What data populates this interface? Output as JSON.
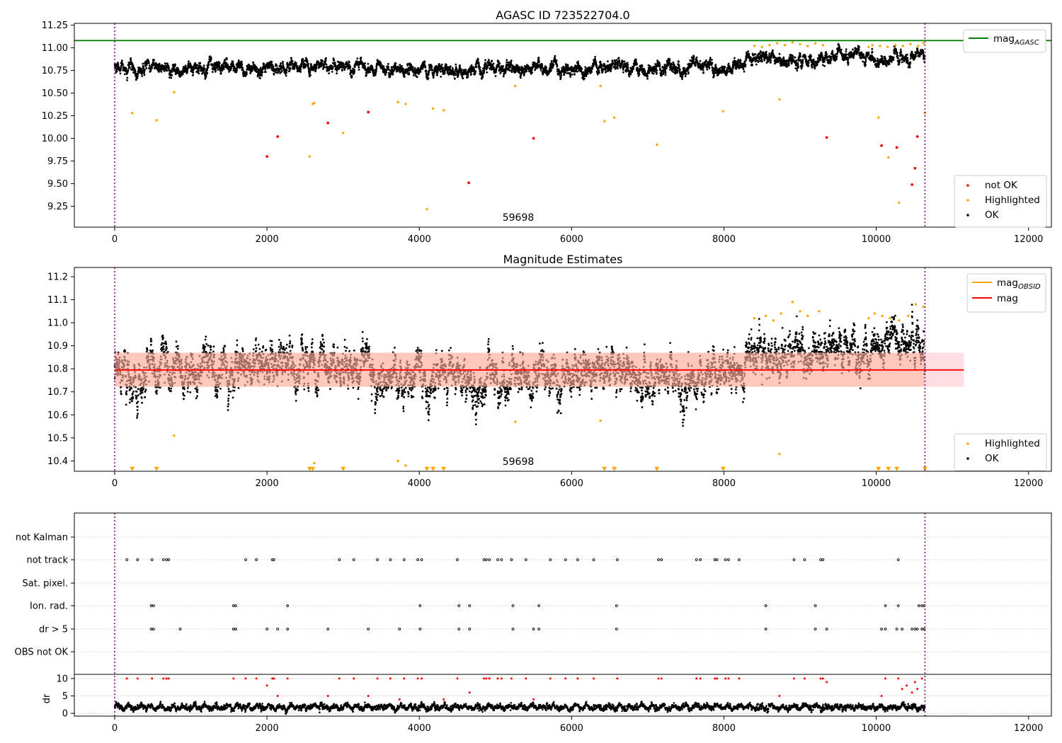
{
  "chart_data": [
    {
      "type": "scatter",
      "title": "AGASC ID 723522704.0",
      "xlim": [
        -530,
        12300
      ],
      "ylim": [
        9.02,
        11.27
      ],
      "xticks": [
        0,
        2000,
        4000,
        6000,
        8000,
        10000,
        12000
      ],
      "yticks": [
        9.25,
        9.5,
        9.75,
        10.0,
        10.25,
        10.5,
        10.75,
        11.0,
        11.25
      ],
      "ytick_labels": [
        "9.25",
        "9.50",
        "9.75",
        "10.00",
        "10.25",
        "10.50",
        "10.75",
        "11.00",
        "11.25"
      ],
      "annotation": "59698",
      "vlines": [
        0,
        10640
      ],
      "hline": {
        "name": "mag_AGASC",
        "y": 11.08,
        "color": "#008000",
        "x_range": [
          -530,
          12300
        ]
      },
      "legend_lines": [
        {
          "label": "mag",
          "subscript": "AGASC",
          "color": "#008000"
        }
      ],
      "legend_points": [
        {
          "label": "not OK",
          "color": "#ff0000"
        },
        {
          "label": "Highlighted",
          "color": "#ffa500"
        },
        {
          "label": "OK",
          "color": "#000000"
        }
      ],
      "series": [
        {
          "name": "OK",
          "color": "#000000",
          "n": 5200,
          "x_range": [
            0,
            10640
          ],
          "baseline": [
            [
              0,
              10.78
            ],
            [
              3300,
              10.8
            ],
            [
              3500,
              10.76
            ],
            [
              8000,
              10.77
            ],
            [
              8400,
              10.86
            ],
            [
              10640,
              10.9
            ]
          ],
          "spread": 0.045
        },
        {
          "name": "not OK",
          "color": "#ff0000",
          "x": [
            2000,
            2140,
            2800,
            3330,
            4650,
            5500,
            9350,
            10070,
            10270,
            10470,
            10510,
            10540
          ],
          "y": [
            9.8,
            10.02,
            10.17,
            10.29,
            9.51,
            10.0,
            10.01,
            9.92,
            9.9,
            9.49,
            9.67,
            10.02
          ]
        },
        {
          "name": "Highlighted",
          "color": "#ffa500",
          "x": [
            230,
            550,
            780,
            2560,
            2600,
            2620,
            3000,
            3720,
            3820,
            4100,
            4180,
            4320,
            5260,
            6380,
            6430,
            6560,
            7120,
            7990,
            8730,
            10030,
            10160,
            10300,
            10640,
            8400,
            8500,
            8600,
            8700,
            8800,
            8900,
            9000,
            9100,
            9200,
            9300,
            9900,
            9950,
            10050,
            10150,
            10250,
            10350,
            10450,
            10550,
            10620
          ],
          "y": [
            10.28,
            10.2,
            10.51,
            9.8,
            10.38,
            10.39,
            10.06,
            10.4,
            10.38,
            9.22,
            10.33,
            10.31,
            10.58,
            10.58,
            10.19,
            10.23,
            9.93,
            10.3,
            10.43,
            10.23,
            9.79,
            9.29,
            10.28,
            11.02,
            11.01,
            11.03,
            11.05,
            11.03,
            11.06,
            11.04,
            11.02,
            11.05,
            11.03,
            11.01,
            11.03,
            11.02,
            11.01,
            11.03,
            11.02,
            11.04,
            11.02,
            11.05
          ]
        }
      ]
    },
    {
      "type": "scatter",
      "title": "Magnitude Estimates",
      "xlim": [
        -530,
        12300
      ],
      "ylim": [
        10.355,
        11.24
      ],
      "xticks": [
        0,
        2000,
        4000,
        6000,
        8000,
        10000,
        12000
      ],
      "yticks": [
        10.4,
        10.5,
        10.6,
        10.7,
        10.8,
        10.9,
        11.0,
        11.1,
        11.2
      ],
      "ytick_labels": [
        "10.4",
        "10.5",
        "10.6",
        "10.7",
        "10.8",
        "10.9",
        "11.0",
        "11.1",
        "11.2"
      ],
      "annotation": "59698",
      "vlines": [
        0,
        10640
      ],
      "mag_line": {
        "name": "mag",
        "y": 10.795,
        "color": "#ff0000",
        "x_range": [
          0,
          11150
        ]
      },
      "mag_band": {
        "y_range": [
          10.722,
          10.87
        ],
        "x_range": [
          0,
          11150
        ],
        "color": "#ffb6c1"
      },
      "mag_obsid_band": {
        "y_range": [
          10.722,
          10.87
        ],
        "x_range": [
          0,
          10640
        ],
        "color": "#ffa07a"
      },
      "legend_lines": [
        {
          "label": "mag",
          "subscript": "OBSID",
          "color": "#ffa500"
        },
        {
          "label": "mag",
          "subscript": "",
          "color": "#ff0000"
        }
      ],
      "legend_points": [
        {
          "label": "Highlighted",
          "color": "#ffa500"
        },
        {
          "label": "OK",
          "color": "#000000"
        }
      ],
      "series": [
        {
          "name": "OK",
          "color": "#000000",
          "n": 5600,
          "x_range": [
            0,
            10640
          ],
          "baseline": [
            [
              0,
              10.78
            ],
            [
              3300,
              10.82
            ],
            [
              3500,
              10.76
            ],
            [
              8000,
              10.77
            ],
            [
              8400,
              10.87
            ],
            [
              10640,
              10.89
            ]
          ],
          "spread": 0.06
        },
        {
          "name": "Highlighted",
          "color": "#ffa500",
          "x": [
            780,
            2620,
            3720,
            3820,
            5260,
            6380,
            8730,
            8400,
            8550,
            8650,
            8750,
            8900,
            9000,
            9100,
            9250,
            9900,
            9980,
            10080,
            10180,
            10300,
            10420,
            10520,
            10620
          ],
          "y": [
            10.51,
            10.39,
            10.4,
            10.38,
            10.57,
            10.575,
            10.43,
            11.02,
            11.03,
            11.01,
            11.04,
            11.09,
            11.05,
            11.03,
            11.05,
            11.02,
            11.04,
            11.03,
            11.02,
            11.01,
            11.03,
            11.08,
            11.07
          ]
        },
        {
          "name": "Highlighted (below axis)",
          "color": "#ffa500",
          "marker": "triangle-down",
          "x": [
            230,
            550,
            2560,
            2600,
            3000,
            4100,
            4180,
            4320,
            6430,
            6560,
            7120,
            7990,
            10030,
            10160,
            10270,
            10640
          ],
          "y": [
            10.365,
            10.365,
            10.365,
            10.365,
            10.365,
            10.365,
            10.365,
            10.365,
            10.365,
            10.365,
            10.365,
            10.365,
            10.365,
            10.365,
            10.365,
            10.365
          ]
        }
      ]
    },
    {
      "type": "scatter",
      "title": "",
      "xlim": [
        -530,
        12300
      ],
      "xticks": [
        0,
        2000,
        4000,
        6000,
        8000,
        10000,
        12000
      ],
      "vlines": [
        0,
        10640
      ],
      "categories": [
        "not Kalman",
        "not track",
        "Sat. pixel.",
        "Ion. rad.",
        "dr > 5",
        "OBS not OK"
      ],
      "flag_series": [
        {
          "category": "not Kalman",
          "x": []
        },
        {
          "category": "not track",
          "x": [
            160,
            300,
            490,
            640,
            680,
            710,
            1720,
            1860,
            2070,
            2090,
            2950,
            3140,
            3450,
            3620,
            3800,
            3980,
            4030,
            4500,
            4850,
            4880,
            4920,
            5030,
            5080,
            5210,
            5400,
            5720,
            5920,
            6080,
            6290,
            6600,
            7140,
            7180,
            7640,
            7690,
            7880,
            7910,
            8020,
            8060,
            8200,
            8920,
            9060,
            9270,
            9300,
            10290
          ]
        },
        {
          "category": "Sat. pixel.",
          "x": []
        },
        {
          "category": "Ion. rad.",
          "x": [
            480,
            510,
            1560,
            1590,
            2270,
            4010,
            4520,
            4660,
            5230,
            5570,
            6590,
            8550,
            9200,
            10120,
            10290,
            10560,
            10600,
            10630
          ]
        },
        {
          "category": "dr > 5",
          "x": [
            480,
            510,
            860,
            1560,
            1590,
            2000,
            2140,
            2270,
            2800,
            3330,
            3740,
            4010,
            4520,
            4660,
            5230,
            5500,
            5570,
            6590,
            8550,
            9200,
            9350,
            10070,
            10120,
            10270,
            10340,
            10470,
            10510,
            10540,
            10600,
            10630
          ]
        },
        {
          "category": "OBS not OK",
          "x": []
        }
      ],
      "dr_panel": {
        "ylabel": "dr",
        "ylim": [
          -0.8,
          11.2
        ],
        "yticks": [
          0,
          5,
          10
        ],
        "ytick_labels": [
          "0",
          "5",
          "10"
        ],
        "series": [
          {
            "name": "OK",
            "color": "#000000",
            "n": 4200,
            "x_range": [
              0,
              10640
            ],
            "level": 1.8,
            "spread": 0.9
          },
          {
            "name": "not OK",
            "color": "#ff0000",
            "x": [
              160,
              300,
              490,
              640,
              680,
              710,
              1560,
              1720,
              1860,
              2000,
              2070,
              2090,
              2140,
              2270,
              2800,
              2950,
              3140,
              3330,
              3450,
              3620,
              3740,
              3800,
              3980,
              4030,
              4320,
              4500,
              4660,
              4850,
              4880,
              4920,
              5030,
              5080,
              5210,
              5400,
              5500,
              5720,
              5920,
              6080,
              6290,
              6600,
              7140,
              7180,
              7640,
              7690,
              7880,
              7910,
              8020,
              8060,
              8200,
              8730,
              8920,
              9060,
              9270,
              9300,
              9350,
              10070,
              10120,
              10290,
              10340,
              10400,
              10470,
              10510,
              10540,
              10600
            ],
            "y": [
              10,
              10,
              10,
              10,
              10,
              10,
              10,
              10,
              10,
              8,
              10,
              10,
              5,
              10,
              5,
              10,
              10,
              5,
              10,
              10,
              4,
              10,
              10,
              10,
              4,
              10,
              6,
              10,
              10,
              10,
              10,
              10,
              10,
              10,
              4,
              10,
              10,
              10,
              10,
              10,
              10,
              10,
              10,
              10,
              10,
              10,
              10,
              10,
              10,
              5,
              10,
              10,
              10,
              10,
              9,
              5,
              10,
              10,
              7,
              8,
              6,
              9,
              7,
              10
            ]
          }
        ]
      }
    }
  ]
}
